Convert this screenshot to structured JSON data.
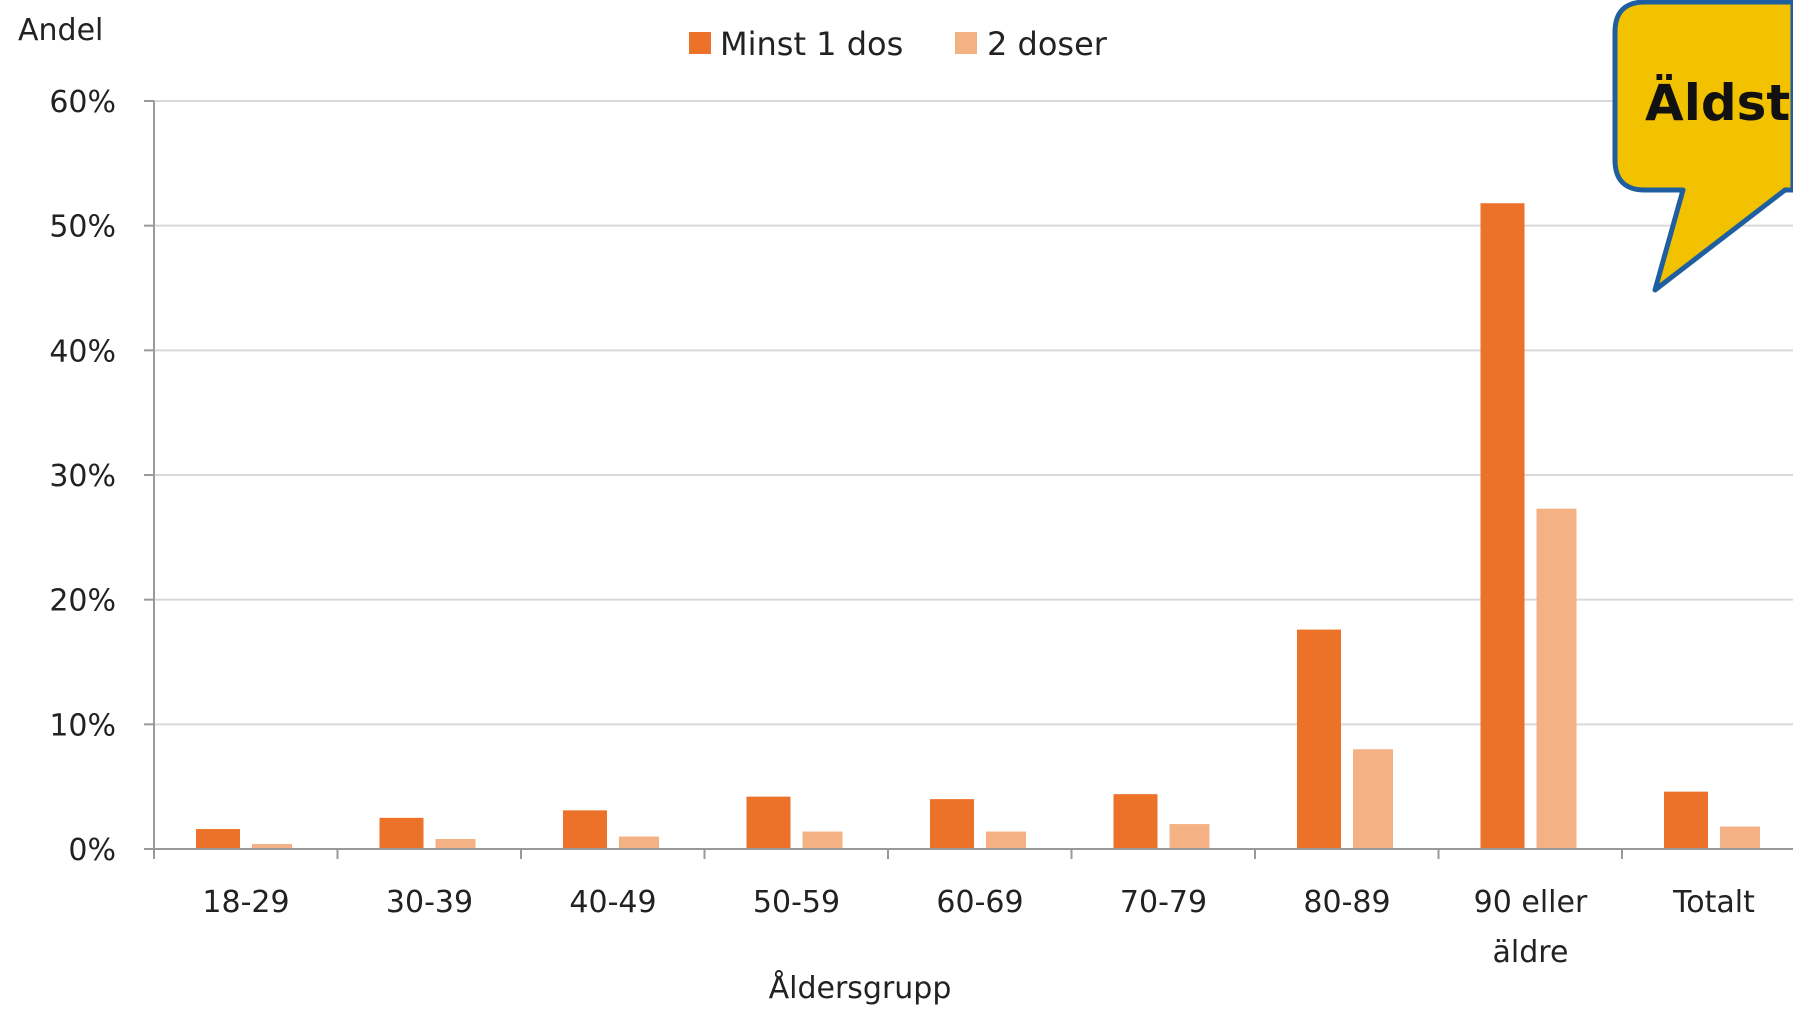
{
  "chart_data": {
    "type": "bar",
    "title": "",
    "xlabel": "Åldersgrupp",
    "ylabel": "Andel",
    "ylim": [
      0,
      60
    ],
    "yticks": [
      "0%",
      "10%",
      "20%",
      "30%",
      "40%",
      "50%",
      "60%"
    ],
    "grid": true,
    "legend_position": "top-center",
    "categories": [
      [
        "18-29"
      ],
      [
        "30-39"
      ],
      [
        "40-49"
      ],
      [
        "50-59"
      ],
      [
        "60-69"
      ],
      [
        "70-79"
      ],
      [
        "80-89"
      ],
      [
        "90 eller",
        "äldre"
      ],
      [
        "Totalt"
      ]
    ],
    "series": [
      {
        "name": "Minst 1 dos",
        "color": "#ED7229",
        "values": [
          1.6,
          2.5,
          3.1,
          4.2,
          4.0,
          4.4,
          17.6,
          51.8,
          4.6
        ]
      },
      {
        "name": "2 doser",
        "color": "#F4B183",
        "values": [
          0.4,
          0.8,
          1.0,
          1.4,
          1.4,
          2.0,
          8.0,
          27.3,
          1.8
        ]
      }
    ]
  },
  "callout": {
    "text": "Äldst",
    "fill": "#F2C200",
    "stroke": "#1F5FA0"
  }
}
